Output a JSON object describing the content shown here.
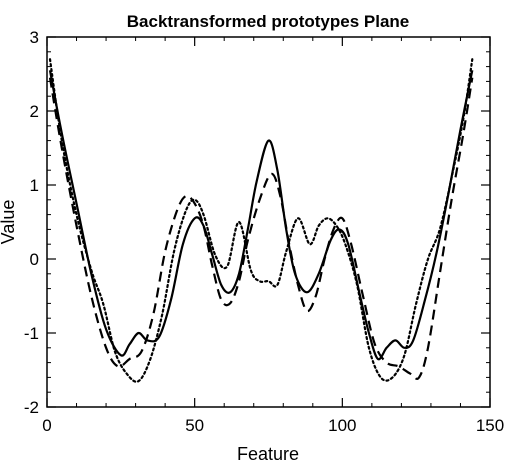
{
  "chart_data": {
    "type": "line",
    "title": "Backtransformed prototypes Plane",
    "xlabel": "Feature",
    "ylabel": "Value",
    "xlim": [
      0,
      150
    ],
    "ylim": [
      -2,
      3
    ],
    "xticks": [
      0,
      50,
      100,
      150
    ],
    "yticks": [
      -2,
      -1,
      0,
      1,
      2,
      3
    ],
    "xtick_labels": [
      "0",
      "50",
      "100",
      "150"
    ],
    "ytick_labels": [
      "-2",
      "-1",
      "0",
      "1",
      "2",
      "3"
    ],
    "grid": false,
    "legend": "none",
    "series": [
      {
        "style": "solid",
        "color": "#000000",
        "x": [
          1,
          5,
          10,
          15,
          20,
          25,
          28,
          31,
          34,
          38,
          42,
          46,
          50,
          53,
          56,
          59,
          62,
          65,
          68,
          71,
          75,
          78,
          81,
          84,
          88,
          92,
          96,
          99,
          102,
          106,
          109,
          112,
          115,
          118,
          121,
          124,
          128,
          132,
          136,
          140,
          144
        ],
        "y": [
          2.55,
          1.7,
          0.75,
          -0.2,
          -0.95,
          -1.3,
          -1.15,
          -1.0,
          -1.1,
          -1.05,
          -0.55,
          0.2,
          0.55,
          0.45,
          0.05,
          -0.35,
          -0.45,
          -0.2,
          0.4,
          1.05,
          1.6,
          1.2,
          0.4,
          -0.2,
          -0.45,
          -0.2,
          0.25,
          0.4,
          0.2,
          -0.5,
          -1.0,
          -1.35,
          -1.2,
          -1.1,
          -1.2,
          -1.1,
          -0.55,
          0.1,
          0.9,
          1.75,
          2.55
        ]
      },
      {
        "style": "dashed",
        "color": "#000000",
        "x": [
          1,
          5,
          10,
          15,
          20,
          24,
          28,
          32,
          36,
          40,
          44,
          47,
          50,
          53,
          56,
          59,
          62,
          65,
          68,
          72,
          76,
          79,
          82,
          85,
          88,
          91,
          94,
          97,
          100,
          103,
          107,
          111,
          115,
          119,
          123,
          126,
          129,
          133,
          137,
          141,
          144
        ],
        "y": [
          2.45,
          1.5,
          0.45,
          -0.5,
          -1.2,
          -1.45,
          -1.35,
          -1.25,
          -0.75,
          0.1,
          0.65,
          0.85,
          0.75,
          0.45,
          -0.1,
          -0.55,
          -0.6,
          -0.3,
          0.25,
          0.8,
          1.15,
          0.85,
          0.2,
          -0.35,
          -0.7,
          -0.5,
          0.0,
          0.4,
          0.55,
          0.2,
          -0.5,
          -1.15,
          -1.4,
          -1.45,
          -1.55,
          -1.6,
          -1.2,
          -0.2,
          0.8,
          1.7,
          2.45
        ]
      },
      {
        "style": "dotted",
        "color": "#000000",
        "x": [
          1,
          5,
          10,
          15,
          19,
          23,
          27,
          31,
          35,
          39,
          43,
          47,
          50,
          53,
          57,
          61,
          65,
          69,
          72,
          75,
          78,
          81,
          85,
          89,
          92,
          95,
          98,
          101,
          105,
          109,
          113,
          117,
          121,
          125,
          129,
          133,
          137,
          141,
          144
        ],
        "y": [
          2.7,
          1.6,
          0.6,
          -0.15,
          -0.6,
          -1.25,
          -1.55,
          -1.65,
          -1.35,
          -0.75,
          0.1,
          0.65,
          0.8,
          0.6,
          0.05,
          -0.1,
          0.5,
          -0.15,
          -0.3,
          -0.3,
          -0.35,
          0.1,
          0.55,
          0.2,
          0.45,
          0.55,
          0.45,
          0.2,
          -0.35,
          -1.2,
          -1.6,
          -1.6,
          -1.3,
          -0.6,
          0.0,
          0.4,
          1.1,
          1.9,
          2.7
        ]
      }
    ]
  }
}
